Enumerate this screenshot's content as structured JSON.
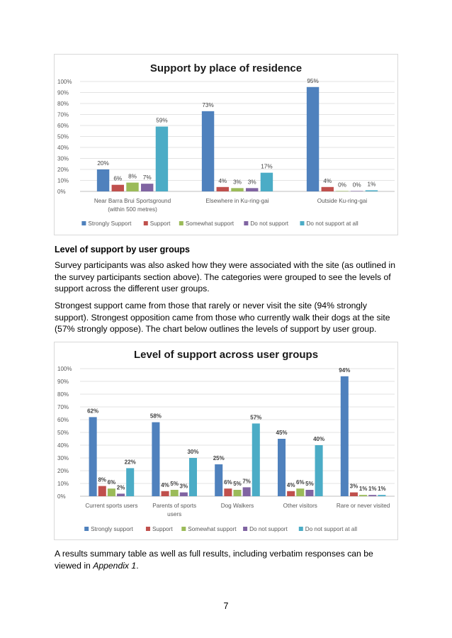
{
  "heading_user_groups": "Level of support by user groups",
  "para1": "Survey participants was also asked how they were associated with the site (as outlined in the survey participants section above). The categories were grouped to see the levels of support across the different user groups.",
  "para2": "Strongest support came from those that rarely or never visit the site (94% strongly support). Strongest opposition came from those who currently walk their dogs at the site (57% strongly oppose). The chart below outlines the levels of support by user group.",
  "para3_text": "A results summary table as well as full results, including verbatim responses can be viewed in ",
  "para3_italic": "Appendix 1",
  "para3_end": ".",
  "page_number": "7",
  "chart_data": [
    {
      "type": "bar",
      "title": "Support by place of residence",
      "categories": [
        [
          "Near Barra Brui Sportsground",
          "(within 500 metres)"
        ],
        [
          "Elsewhere in Ku-ring-gai"
        ],
        [
          "Outside Ku-ring-gai"
        ]
      ],
      "series": [
        {
          "name": "Strongly Support",
          "values": [
            20,
            73,
            95
          ],
          "labels": [
            "20%",
            "73%",
            "95%"
          ],
          "color": "#4f81bd"
        },
        {
          "name": "Support",
          "values": [
            6,
            4,
            4
          ],
          "labels": [
            "6%",
            "4%",
            "4%"
          ],
          "color": "#c0504d"
        },
        {
          "name": "Somewhat  support",
          "values": [
            8,
            3,
            0
          ],
          "labels": [
            "8%",
            "3%",
            "0%"
          ],
          "color": "#9bbb59"
        },
        {
          "name": "Do not support",
          "values": [
            7,
            3,
            0
          ],
          "labels": [
            "7%",
            "3%",
            "0%"
          ],
          "color": "#8064a2"
        },
        {
          "name": "Do not support at all",
          "values": [
            59,
            17,
            1
          ],
          "labels": [
            "59%",
            "17%",
            "1%"
          ],
          "color": "#4bacc6"
        }
      ],
      "yticks": [
        "0%",
        "10%",
        "20%",
        "30%",
        "40%",
        "50%",
        "60%",
        "70%",
        "80%",
        "90%",
        "100%"
      ],
      "ylim": [
        0,
        100
      ],
      "grid": true,
      "legend": "bottom",
      "bold_labels": false
    },
    {
      "type": "bar",
      "title": "Level of support across user groups",
      "categories": [
        [
          "Current sports users"
        ],
        [
          "Parents of sports",
          "users"
        ],
        [
          "Dog Walkers"
        ],
        [
          "Other visitors"
        ],
        [
          "Rare or never visited"
        ]
      ],
      "series": [
        {
          "name": "Strongly support",
          "values": [
            62,
            58,
            25,
            45,
            94
          ],
          "labels": [
            "62%",
            "58%",
            "25%",
            "45%",
            "94%"
          ],
          "color": "#4f81bd"
        },
        {
          "name": "Support",
          "values": [
            8,
            4,
            6,
            4,
            3
          ],
          "labels": [
            "8%",
            "4%",
            "6%",
            "4%",
            "3%"
          ],
          "color": "#c0504d"
        },
        {
          "name": "Somewhat support",
          "values": [
            6,
            5,
            5,
            6,
            1
          ],
          "labels": [
            "6%",
            "5%",
            "5%",
            "6%",
            "1%"
          ],
          "color": "#9bbb59"
        },
        {
          "name": "Do not support",
          "values": [
            2,
            3,
            7,
            5,
            1
          ],
          "labels": [
            "2%",
            "3%",
            "7%",
            "5%",
            "1%"
          ],
          "color": "#8064a2"
        },
        {
          "name": "Do not support at all",
          "values": [
            22,
            30,
            57,
            40,
            1
          ],
          "labels": [
            "22%",
            "30%",
            "57%",
            "40%",
            "1%"
          ],
          "color": "#4bacc6"
        }
      ],
      "yticks": [
        "0%",
        "10%",
        "20%",
        "30%",
        "40%",
        "50%",
        "60%",
        "70%",
        "80%",
        "90%",
        "100%"
      ],
      "ylim": [
        0,
        100
      ],
      "grid": true,
      "legend": "bottom",
      "bold_labels": true
    }
  ]
}
